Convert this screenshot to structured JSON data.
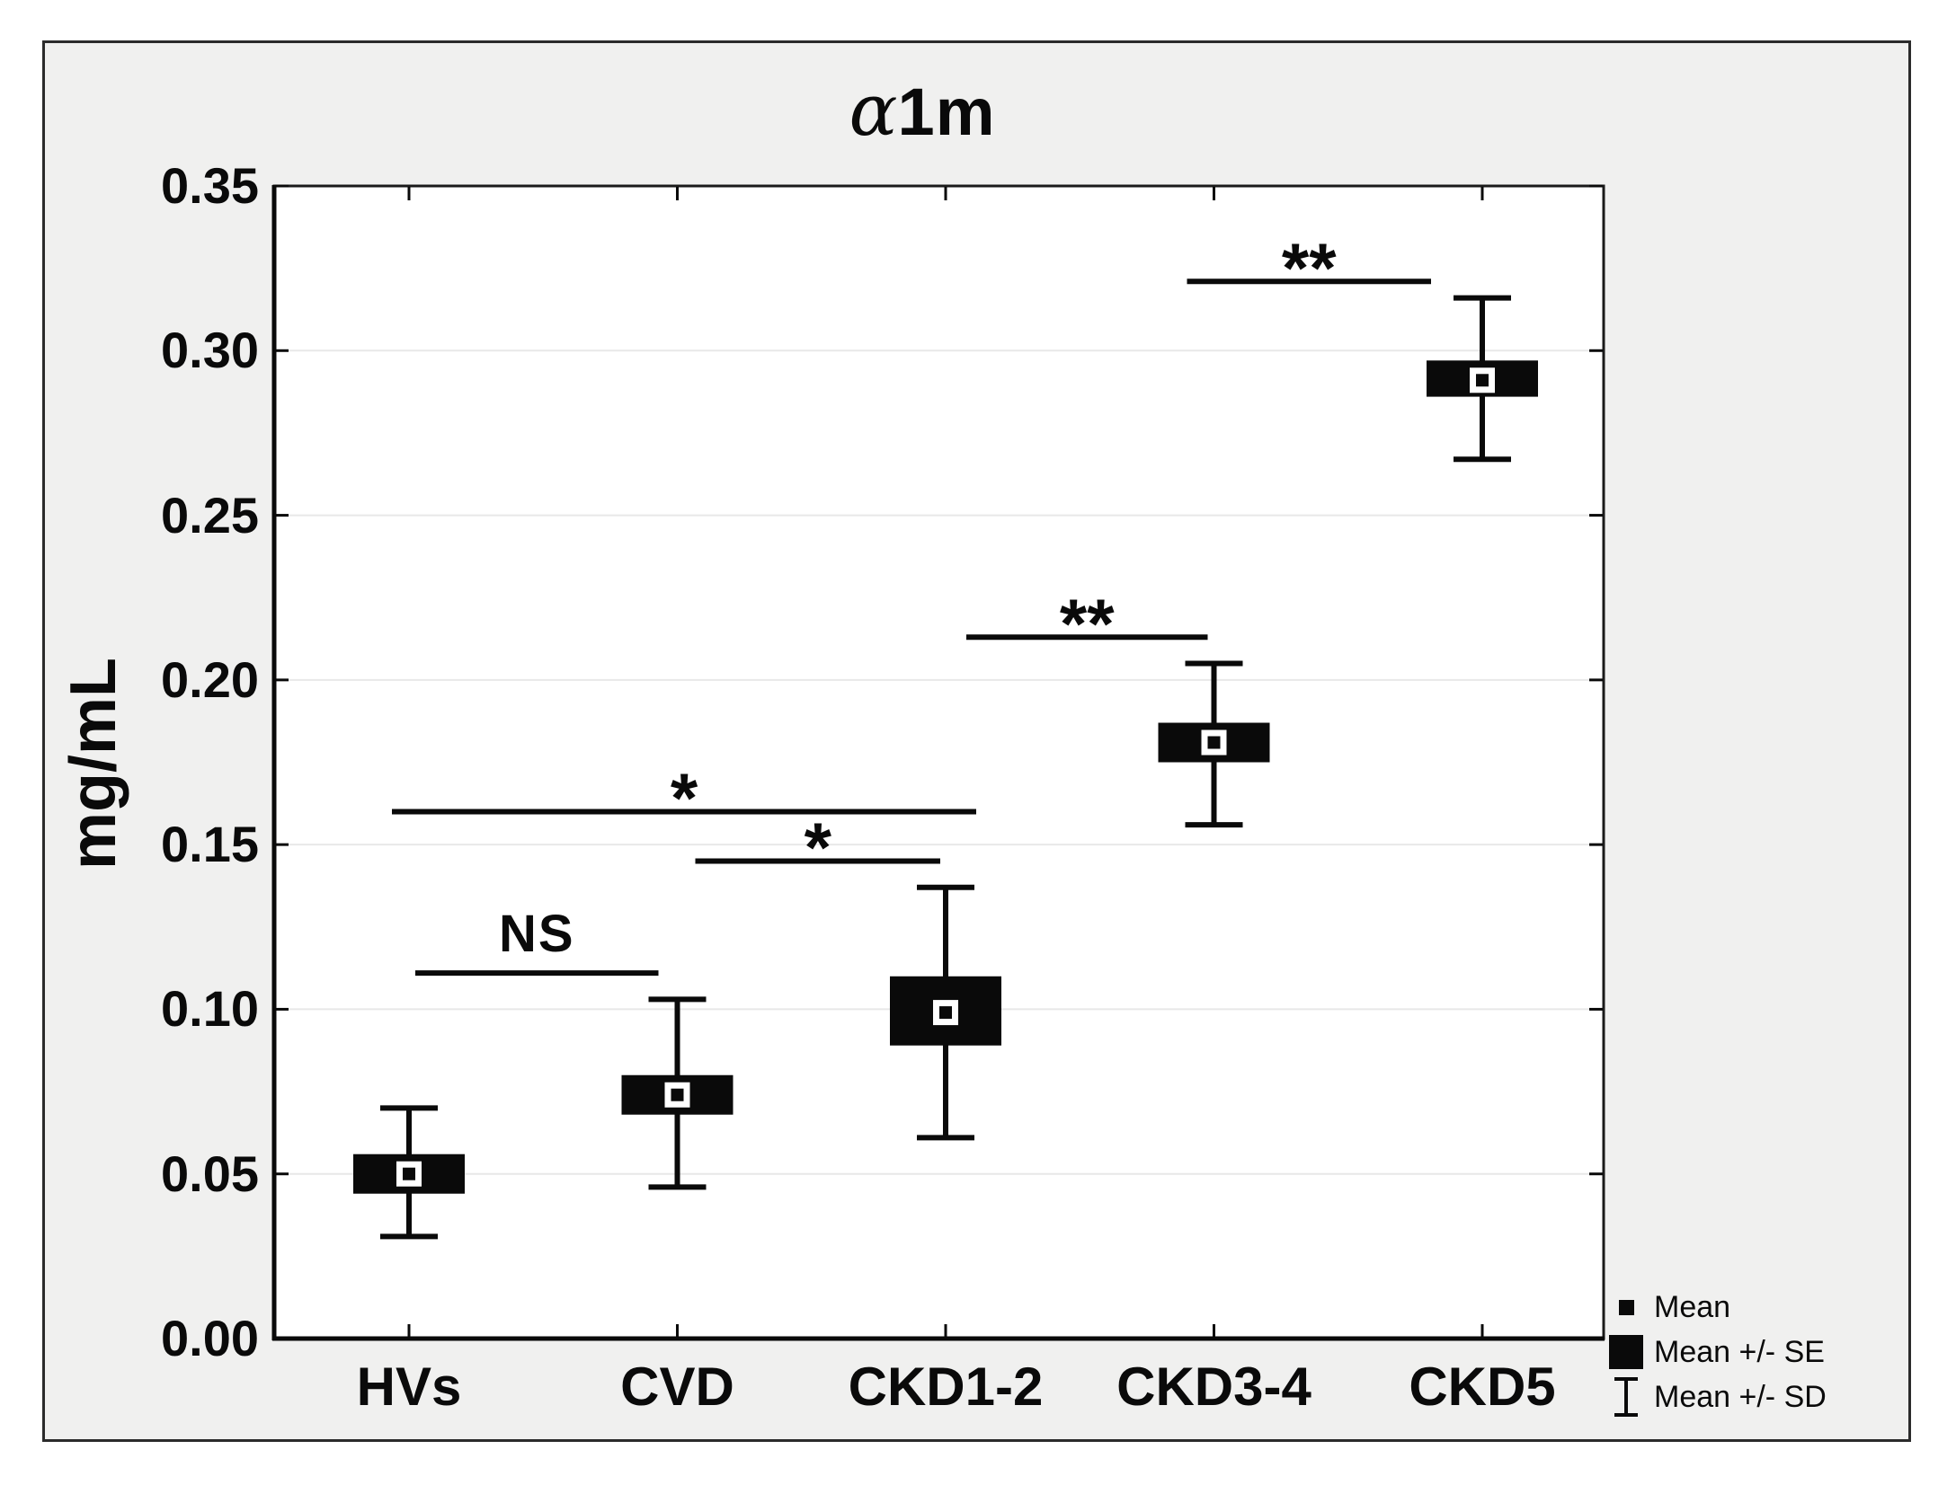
{
  "figure": {
    "title_parts": {
      "alpha": "α",
      "rest": "1m"
    },
    "colors": {
      "panel_bg": "#f0f0ef",
      "plot_bg": "#ffffff",
      "ink": "#0a0a0a",
      "grid": "#e8e8e8",
      "frame": "#1a1a1a",
      "outer_border": "#2b2b2b"
    }
  },
  "chart_data": {
    "type": "mean-se-sd-summary (box: mean ± SE, whiskers: mean ± SD)",
    "title": "α1m",
    "ylabel": "mg/mL",
    "units": "mg/mL",
    "ylim": [
      0,
      0.35
    ],
    "ytick_step": 0.05,
    "ytick_labels": [
      "0.00",
      "0.05",
      "0.10",
      "0.15",
      "0.20",
      "0.25",
      "0.30",
      "0.35"
    ],
    "grid": "horizontal",
    "legend_position": "bottom-right",
    "categories": [
      "HVs",
      "CVD",
      "CKD1-2",
      "CKD3-4",
      "CKD5"
    ],
    "series": [
      {
        "name": "HVs",
        "mean": 0.05,
        "se_low": 0.044,
        "se_high": 0.056,
        "sd_low": 0.031,
        "sd_high": 0.07
      },
      {
        "name": "CVD",
        "mean": 0.074,
        "se_low": 0.068,
        "se_high": 0.08,
        "sd_low": 0.046,
        "sd_high": 0.103
      },
      {
        "name": "CKD1-2",
        "mean": 0.099,
        "se_low": 0.089,
        "se_high": 0.11,
        "sd_low": 0.061,
        "sd_high": 0.137
      },
      {
        "name": "CKD3-4",
        "mean": 0.181,
        "se_low": 0.175,
        "se_high": 0.187,
        "sd_low": 0.156,
        "sd_high": 0.205
      },
      {
        "name": "CKD5",
        "mean": 0.291,
        "se_low": 0.286,
        "se_high": 0.297,
        "sd_low": 0.267,
        "sd_high": 0.316
      }
    ],
    "significance": [
      {
        "pair": [
          "HVs",
          "CVD"
        ],
        "label": "NS",
        "y": 0.111,
        "x1_group": 0,
        "x2_group": 1,
        "x1_off": 7,
        "x2_off": -21
      },
      {
        "pair": [
          "HVs",
          "CKD1-2"
        ],
        "label": "*",
        "y": 0.16,
        "x1_group": 0,
        "x2_group": 2,
        "x1_off": -19,
        "x2_off": 34
      },
      {
        "pair": [
          "CVD",
          "CKD1-2"
        ],
        "label": "*",
        "y": 0.145,
        "x1_group": 1,
        "x2_group": 2,
        "x1_off": 20,
        "x2_off": -6
      },
      {
        "pair": [
          "CKD1-2",
          "CKD3-4"
        ],
        "label": "**",
        "y": 0.213,
        "x1_group": 2,
        "x2_group": 3,
        "x1_off": 23,
        "x2_off": -7
      },
      {
        "pair": [
          "CKD3-4",
          "CKD5"
        ],
        "label": "**",
        "y": 0.321,
        "x1_group": 3,
        "x2_group": 4,
        "x1_off": -30,
        "x2_off": -57
      }
    ],
    "legend": [
      {
        "marker": "mean-square",
        "label": "Mean"
      },
      {
        "marker": "se-box",
        "label": "Mean +/- SE"
      },
      {
        "marker": "sd-whisker",
        "label": "Mean +/- SD"
      }
    ]
  }
}
